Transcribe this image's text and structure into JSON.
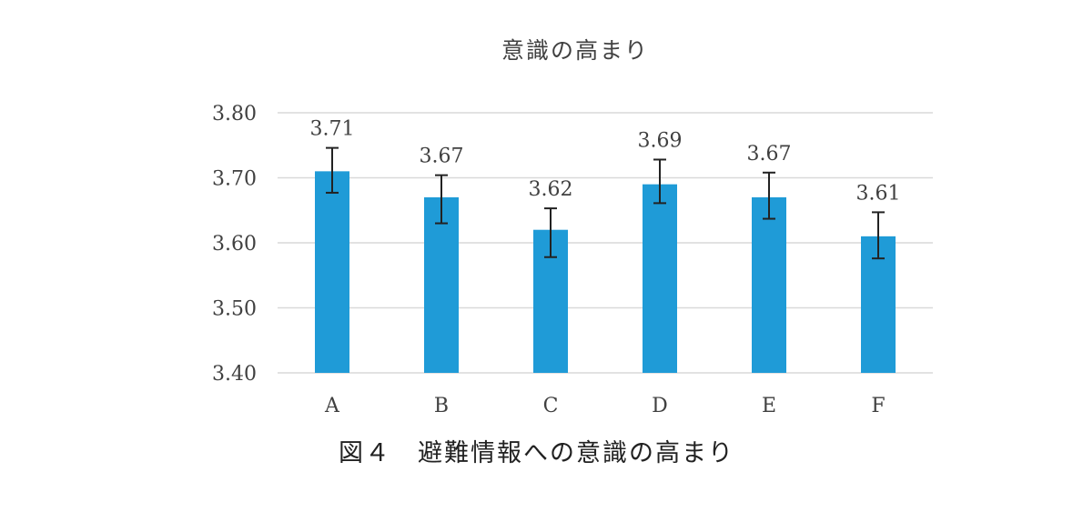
{
  "caption": "図４　避難情報への意識の高まり",
  "colors": {
    "bar": "#1f9bd7",
    "grid": "#d9d9d9",
    "error_bar": "#222222",
    "text": "#404040"
  },
  "chart_data": {
    "type": "bar",
    "title": "意識の高まり",
    "xlabel": "",
    "ylabel": "",
    "categories": [
      "A",
      "B",
      "C",
      "D",
      "E",
      "F"
    ],
    "values": [
      3.71,
      3.67,
      3.62,
      3.69,
      3.67,
      3.61
    ],
    "data_labels": [
      "3.71",
      "3.67",
      "3.62",
      "3.69",
      "3.67",
      "3.61"
    ],
    "error_bars": [
      {
        "low": 3.677,
        "high": 3.746
      },
      {
        "low": 3.63,
        "high": 3.704
      },
      {
        "low": 3.578,
        "high": 3.653
      },
      {
        "low": 3.661,
        "high": 3.728
      },
      {
        "low": 3.637,
        "high": 3.708
      },
      {
        "low": 3.576,
        "high": 3.647
      }
    ],
    "ylim": [
      3.4,
      3.8
    ],
    "yticks": [
      "3.40",
      "3.50",
      "3.60",
      "3.70",
      "3.80"
    ],
    "grid": true,
    "legend": "none"
  }
}
